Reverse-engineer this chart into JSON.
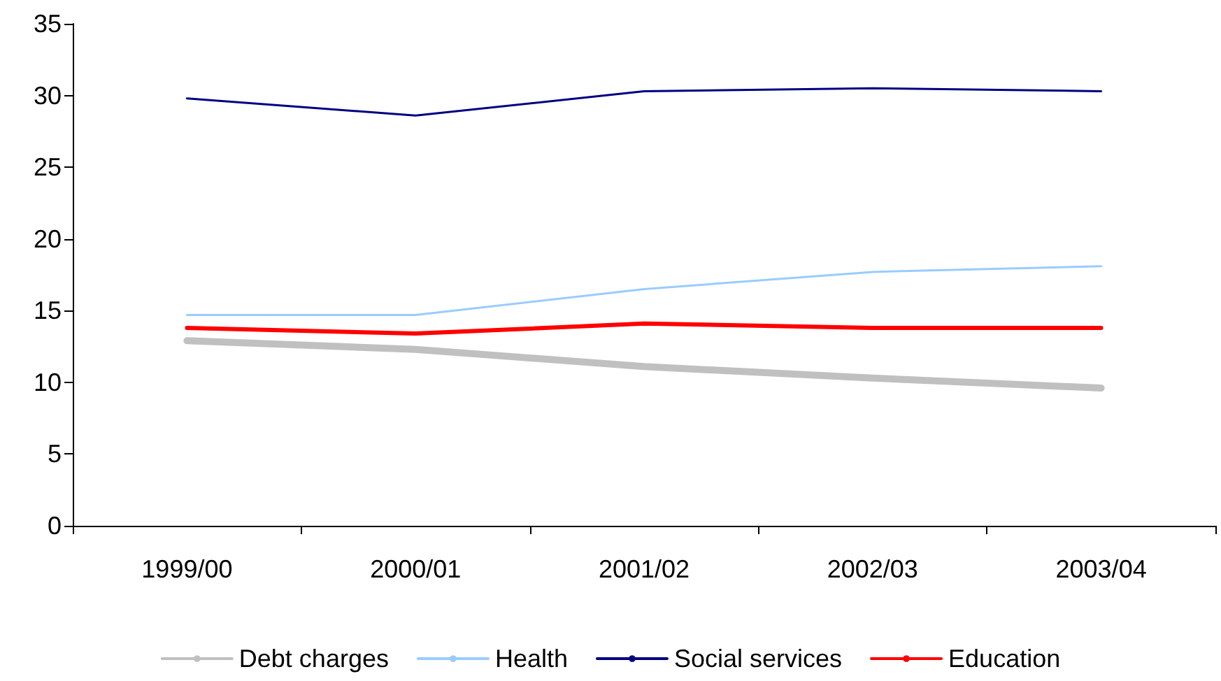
{
  "chart_data": {
    "type": "line",
    "categories": [
      "1999/00",
      "2000/01",
      "2001/02",
      "2002/03",
      "2003/04"
    ],
    "series": [
      {
        "name": "Debt charges",
        "color": "#c0c0c0",
        "values": [
          12.9,
          12.3,
          11.1,
          10.3,
          9.6
        ]
      },
      {
        "name": "Health",
        "color": "#99ccff",
        "values": [
          14.7,
          14.7,
          16.5,
          17.7,
          18.1
        ]
      },
      {
        "name": "Social services",
        "color": "#000080",
        "values": [
          29.8,
          28.6,
          30.3,
          30.5,
          30.3
        ]
      },
      {
        "name": "Education",
        "color": "#ff0000",
        "values": [
          13.8,
          13.4,
          14.1,
          13.8,
          13.8
        ]
      }
    ],
    "ylim": [
      0,
      35
    ],
    "yticks": [
      0,
      5,
      10,
      15,
      20,
      25,
      30,
      35
    ],
    "grid": false,
    "legend": "bottom",
    "marker": "none",
    "line_style": "solid"
  }
}
